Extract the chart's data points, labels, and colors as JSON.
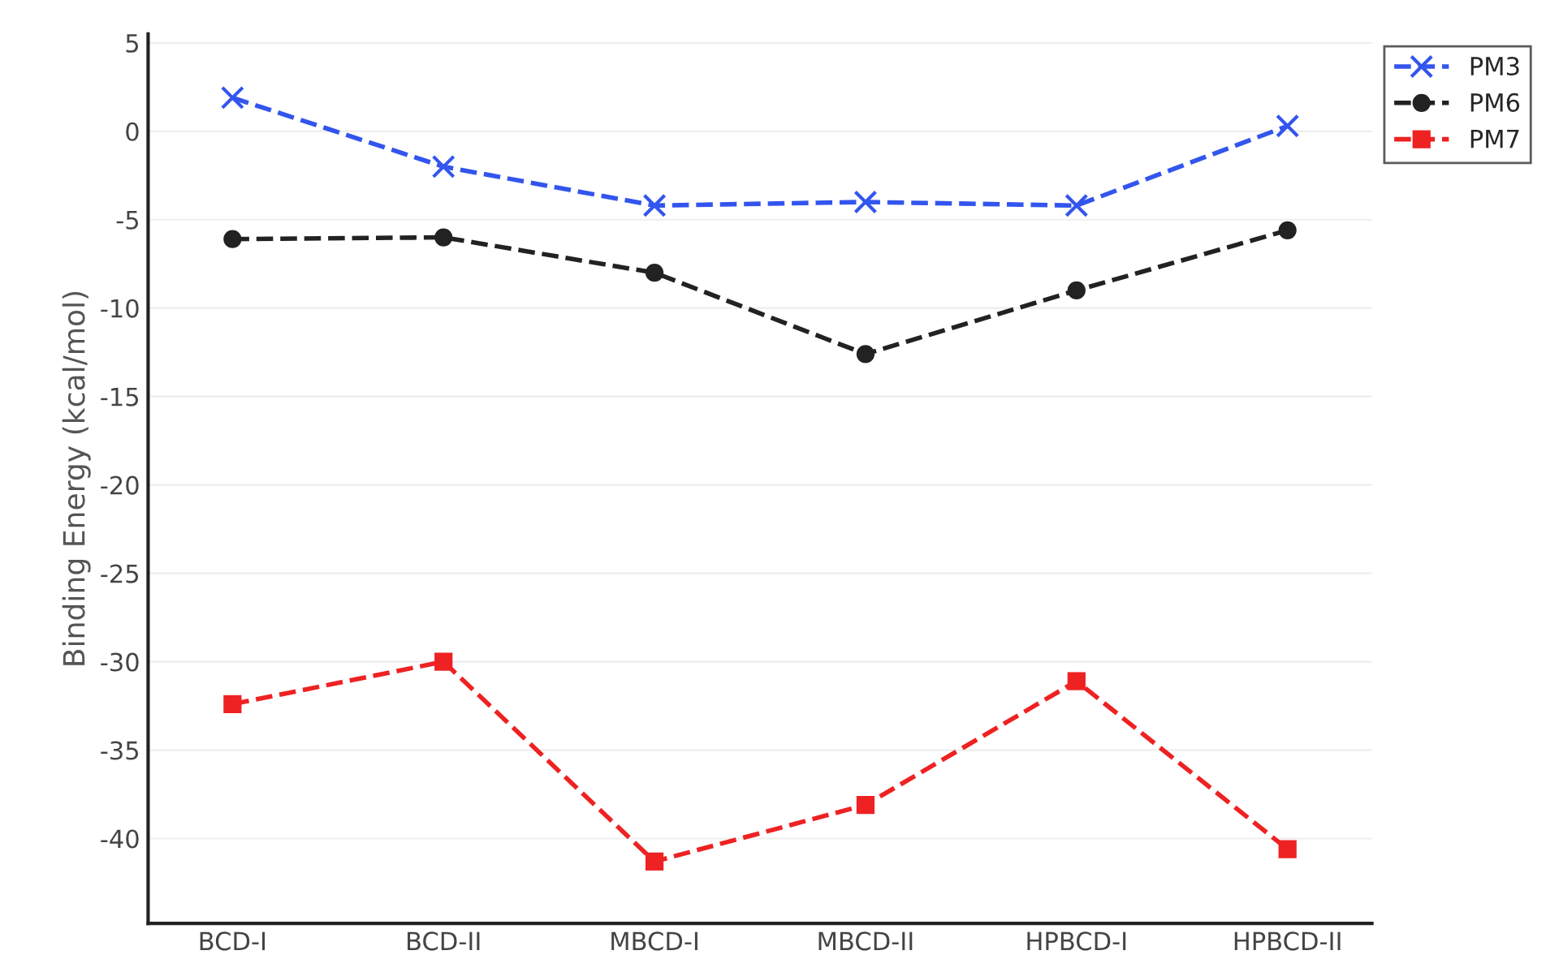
{
  "chart_data": {
    "type": "line",
    "ylabel": "Binding Energy (kcal/mol)",
    "categories": [
      "BCD-I",
      "BCD-II",
      "MBCD-I",
      "MBCD-II",
      "HPBCD-I",
      "HPBCD-II"
    ],
    "series": [
      {
        "name": "PM3",
        "color": "#3355ee",
        "marker": "cross",
        "values": [
          1.9,
          -2.0,
          -4.2,
          -4.0,
          -4.2,
          0.3
        ]
      },
      {
        "name": "PM6",
        "color": "#222222",
        "marker": "circle",
        "values": [
          -6.1,
          -6.0,
          -8.0,
          -12.6,
          -9.0,
          -5.6
        ]
      },
      {
        "name": "PM7",
        "color": "#ee2222",
        "marker": "square",
        "values": [
          -32.4,
          -30.0,
          -41.3,
          -38.1,
          -31.1,
          -40.6
        ]
      }
    ],
    "line_style": "dashed",
    "ylim": [
      -44.8,
      5.5
    ],
    "yticks": [
      5,
      0,
      -5,
      -10,
      -15,
      -20,
      -25,
      -30,
      -35,
      -40
    ],
    "grid": "y",
    "legend": "top right"
  }
}
